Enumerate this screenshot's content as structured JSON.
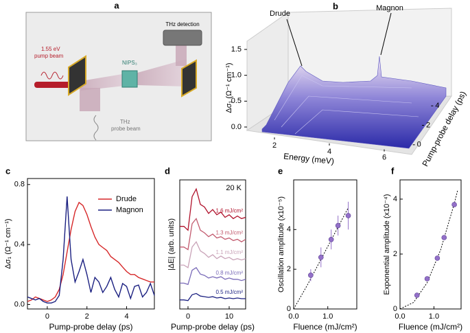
{
  "panel_a": {
    "label": "a",
    "pump": [
      "1.55 eV",
      "pump beam"
    ],
    "sample": "NIPS₃",
    "detector": "THz detection",
    "probe": [
      "THz",
      "probe beam"
    ]
  },
  "chart_data": [
    {
      "type": "surface3d",
      "label": "b",
      "zlabel": "Δσ₁ (Ω⁻¹ cm⁻¹)",
      "xlabel": "Energy (meV)",
      "ylabel": "Pump-probe delay (ps)",
      "zlim": [
        0,
        1.5
      ],
      "zticks": [
        {
          "value": 0,
          "label": "0.0"
        },
        0.5,
        {
          "value": 1,
          "label": "1.0"
        },
        1.5
      ],
      "xlim": [
        1.5,
        7
      ],
      "xticks": [
        2,
        4,
        6
      ],
      "ylim": [
        -1,
        5
      ],
      "yticks": [
        0,
        2,
        4
      ],
      "annotations": [
        "Drude",
        "Magnon"
      ]
    },
    {
      "type": "line",
      "label": "c",
      "xlabel": "Pump-probe delay (ps)",
      "ylabel": "Δσ₁ (Ω⁻¹ cm⁻¹)",
      "xlim": [
        -1,
        5.4
      ],
      "xticks": [
        0,
        2,
        4
      ],
      "ylim": [
        -0.03,
        0.84
      ],
      "yticks": [
        {
          "value": 0,
          "label": "0.0"
        },
        0.4,
        0.8
      ],
      "legend": "upper right",
      "x": [
        -1,
        -0.8,
        -0.6,
        -0.4,
        -0.2,
        0,
        0.2,
        0.4,
        0.6,
        0.8,
        1,
        1.2,
        1.4,
        1.6,
        1.8,
        2,
        2.2,
        2.4,
        2.6,
        2.8,
        3,
        3.2,
        3.4,
        3.6,
        3.8,
        4,
        4.2,
        4.4,
        4.6,
        4.8,
        5,
        5.2,
        5.4
      ],
      "series": [
        {
          "name": "Drude",
          "color": "#d62728",
          "values": [
            0.02,
            0.03,
            0.05,
            0.04,
            0.03,
            0.02,
            0.03,
            0.05,
            0.1,
            0.2,
            0.35,
            0.5,
            0.62,
            0.68,
            0.66,
            0.6,
            0.52,
            0.45,
            0.4,
            0.38,
            0.36,
            0.32,
            0.3,
            0.28,
            0.25,
            0.22,
            0.2,
            0.2,
            0.18,
            0.17,
            0.16,
            0.15,
            0.15
          ]
        },
        {
          "name": "Magnon",
          "color": "#1a1f80",
          "values": [
            0.05,
            0.04,
            0.03,
            0.04,
            0.02,
            0.01,
            0.01,
            0.02,
            0.06,
            0.3,
            0.72,
            0.3,
            0.15,
            0.22,
            0.3,
            0.2,
            0.08,
            0.18,
            0.15,
            0.08,
            0.12,
            0.18,
            0.1,
            0.05,
            0.14,
            0.12,
            0.04,
            0.12,
            0.13,
            0.05,
            0.08,
            0.14,
            0.06
          ]
        }
      ]
    },
    {
      "type": "waterfall",
      "label": "d",
      "xlabel": "Pump-probe delay (ps)",
      "ylabel": "|ΔE| (arb. units)",
      "annotation": "20 K",
      "xlim": [
        -2,
        14
      ],
      "xticks": [
        0,
        10
      ],
      "ylim": [
        0,
        10
      ],
      "x": [
        -2,
        -1,
        0,
        1,
        2,
        3,
        4,
        5,
        6,
        7,
        8,
        9,
        10,
        11,
        12,
        13,
        14
      ],
      "series": [
        {
          "name": "1.6 mJ/cm²",
          "color": "#b0102a",
          "values": [
            6.4,
            6.4,
            6.1,
            8.7,
            9.3,
            8.1,
            7.9,
            7.4,
            7.7,
            7.3,
            7.5,
            7.1,
            7.3,
            7.0,
            7.2,
            7.0,
            7.1
          ]
        },
        {
          "name": "1.3 mJ/cm²",
          "color": "#c25a6e",
          "values": [
            4.8,
            4.8,
            4.6,
            6.6,
            7.0,
            6.1,
            5.9,
            5.6,
            5.8,
            5.5,
            5.6,
            5.4,
            5.5,
            5.3,
            5.4,
            5.2,
            5.4
          ]
        },
        {
          "name": "1.1 mJ/cm²",
          "color": "#c9a3b8",
          "values": [
            3.4,
            3.4,
            3.2,
            4.8,
            5.2,
            4.5,
            4.3,
            4.0,
            4.2,
            3.9,
            4.1,
            3.9,
            4.0,
            3.8,
            3.9,
            3.8,
            3.9
          ]
        },
        {
          "name": "0.8 mJ/cm²",
          "color": "#7a6bb8",
          "values": [
            2.0,
            2.0,
            1.9,
            3.0,
            3.2,
            2.7,
            2.6,
            2.4,
            2.5,
            2.4,
            2.5,
            2.3,
            2.4,
            2.3,
            2.3,
            2.2,
            2.3
          ]
        },
        {
          "name": "0.5 mJ/cm²",
          "color": "#1a1f80",
          "values": [
            0.7,
            0.7,
            0.65,
            1.1,
            1.2,
            1.0,
            0.95,
            0.9,
            0.95,
            0.85,
            0.9,
            0.8,
            0.85,
            0.8,
            0.85,
            0.8,
            0.8
          ]
        }
      ]
    },
    {
      "type": "scatter",
      "label": "e",
      "xlabel": "Fluence (mJ/cm²)",
      "ylabel": "Oscillation amplitude (x10⁻⁵)",
      "color": "#9370c8",
      "xlim": [
        0,
        1.85
      ],
      "xticks": [
        {
          "value": 0,
          "label": "0.0"
        },
        {
          "value": 1,
          "label": "1.0"
        }
      ],
      "ylim": [
        0,
        6.5
      ],
      "yticks": [
        0,
        2,
        4
      ],
      "x": [
        0.5,
        0.8,
        1.1,
        1.3,
        1.6
      ],
      "values": [
        1.7,
        2.6,
        3.5,
        4.2,
        4.7
      ],
      "errors": [
        0.3,
        0.5,
        0.5,
        0.5,
        0.7
      ],
      "fit": {
        "x": [
          0,
          0.4,
          0.8,
          1.2,
          1.6
        ],
        "values": [
          0,
          1.2,
          2.5,
          3.8,
          5.1
        ]
      }
    },
    {
      "type": "scatter",
      "label": "f",
      "xlabel": "Fluence (mJ/cm²)",
      "ylabel": "Exponential amplitude (x10⁻⁴)",
      "color": "#9370c8",
      "xlim": [
        0,
        1.8
      ],
      "xticks": [
        {
          "value": 0,
          "label": "0.0"
        },
        {
          "value": 1,
          "label": "1.0"
        }
      ],
      "ylim": [
        0,
        4.7
      ],
      "yticks": [
        0,
        2,
        4
      ],
      "x": [
        0.5,
        0.8,
        1.1,
        1.3,
        1.6
      ],
      "values": [
        0.5,
        1.1,
        1.85,
        2.6,
        3.8
      ],
      "errors": [
        0.05,
        0.05,
        0.05,
        0.08,
        0.1
      ],
      "fit": {
        "x": [
          0,
          0.4,
          0.8,
          1.2,
          1.6,
          1.7
        ],
        "values": [
          0,
          0.24,
          0.96,
          2.16,
          3.84,
          4.33
        ]
      }
    }
  ]
}
